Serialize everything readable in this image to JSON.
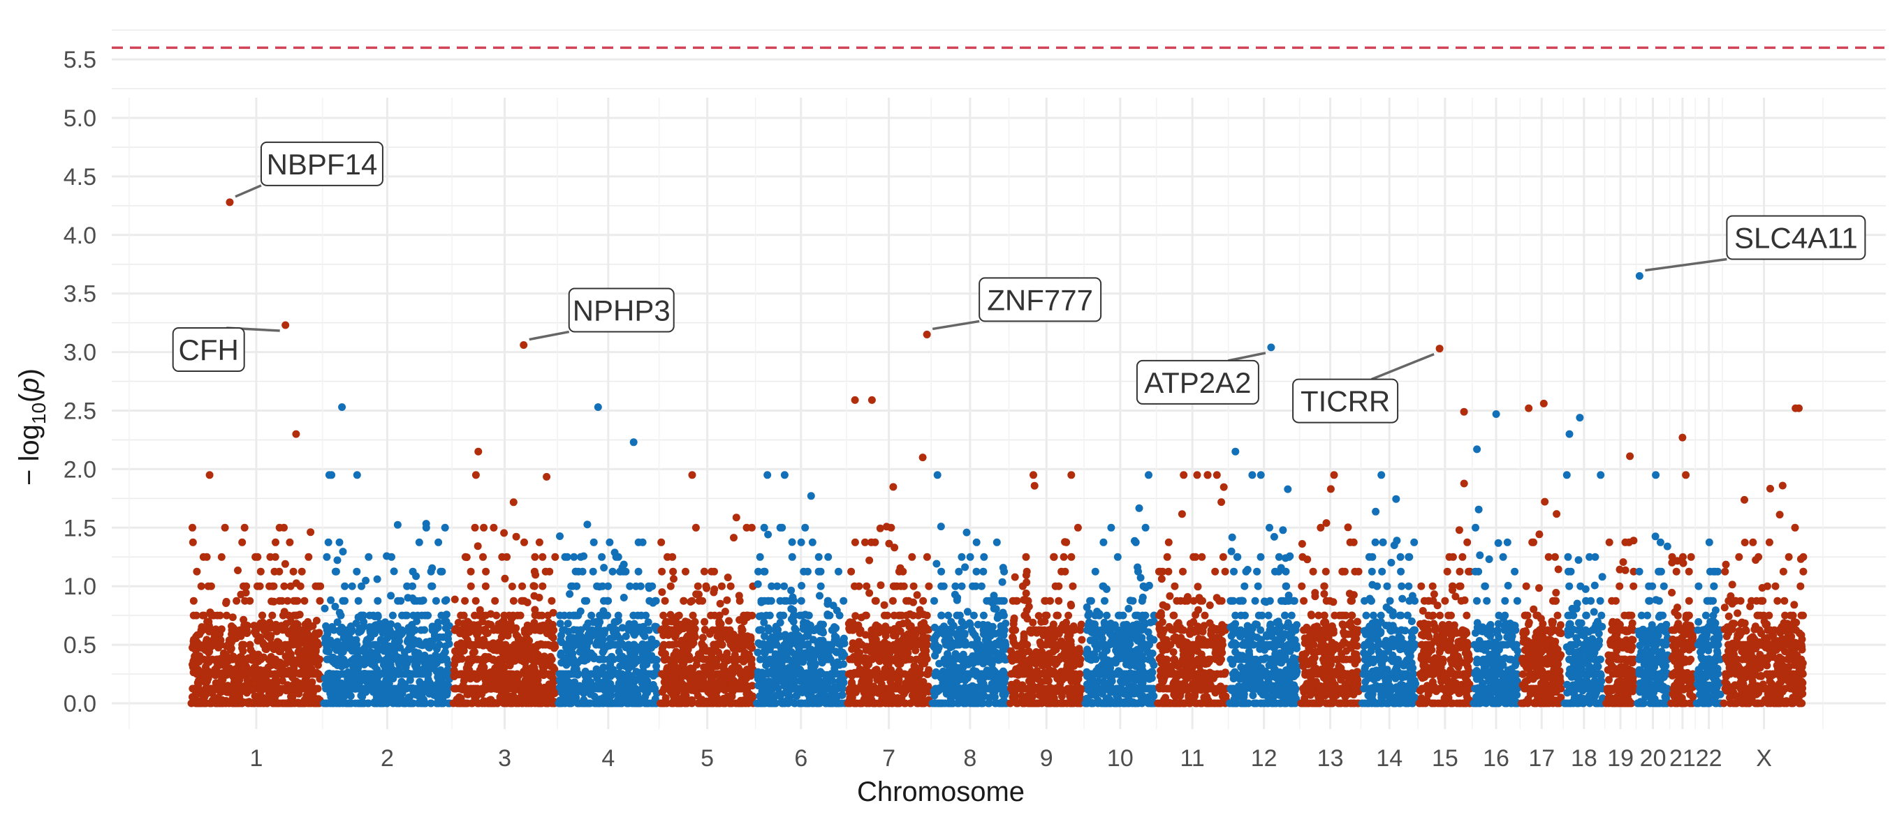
{
  "chart_data": {
    "type": "scatter",
    "title": "",
    "xlabel": "Chromosome",
    "ylabel": "−log10(p)",
    "ylabel_parts": {
      "prefix": "− log",
      "sub": "10",
      "open": "(",
      "var": "p",
      "close": ")"
    },
    "ylim": [
      0,
      5.75
    ],
    "y_ticks": [
      0.0,
      0.5,
      1.0,
      1.5,
      2.0,
      2.5,
      3.0,
      3.5,
      4.0,
      4.5,
      5.0,
      5.5
    ],
    "y_tick_labels": [
      "0.0",
      "0.5",
      "1.0",
      "1.5",
      "2.0",
      "2.5",
      "3.0",
      "3.5",
      "4.0",
      "4.5",
      "5.0",
      "5.5"
    ],
    "significance_threshold": 5.6,
    "grid": true,
    "legend": "none",
    "colors": {
      "odd": "#b22d0b",
      "even": "#1170b8",
      "threshold": "#d14357"
    },
    "chromosomes": [
      {
        "label": "1",
        "size": 249
      },
      {
        "label": "2",
        "size": 243
      },
      {
        "label": "3",
        "size": 198
      },
      {
        "label": "4",
        "size": 191
      },
      {
        "label": "5",
        "size": 181
      },
      {
        "label": "6",
        "size": 171
      },
      {
        "label": "7",
        "size": 159
      },
      {
        "label": "8",
        "size": 146
      },
      {
        "label": "9",
        "size": 141
      },
      {
        "label": "10",
        "size": 136
      },
      {
        "label": "11",
        "size": 135
      },
      {
        "label": "12",
        "size": 134
      },
      {
        "label": "13",
        "size": 115
      },
      {
        "label": "14",
        "size": 107
      },
      {
        "label": "15",
        "size": 102
      },
      {
        "label": "16",
        "size": 90
      },
      {
        "label": "17",
        "size": 81
      },
      {
        "label": "18",
        "size": 78
      },
      {
        "label": "19",
        "size": 59
      },
      {
        "label": "20",
        "size": 63
      },
      {
        "label": "21",
        "size": 48
      },
      {
        "label": "22",
        "size": 51
      },
      {
        "label": "X",
        "size": 156
      }
    ],
    "annotated_hits": [
      {
        "gene": "NBPF14",
        "chromosome": "1",
        "position": 0.3,
        "y": 4.28
      },
      {
        "gene": "CFH",
        "chromosome": "1",
        "position": 0.72,
        "y": 3.23
      },
      {
        "gene": "NPHP3",
        "chromosome": "3",
        "position": 0.68,
        "y": 3.06
      },
      {
        "gene": "ZNF777",
        "chromosome": "7",
        "position": 0.95,
        "y": 3.15
      },
      {
        "gene": "ATP2A2",
        "chromosome": "12",
        "position": 0.6,
        "y": 3.04
      },
      {
        "gene": "TICRR",
        "chromosome": "15",
        "position": 0.4,
        "y": 3.03
      },
      {
        "gene": "SLC4A11",
        "chromosome": "20",
        "position": 0.1,
        "y": 3.65
      }
    ],
    "secondary_peaks": [
      {
        "chromosome": "1",
        "position": 0.8,
        "y": 2.3
      },
      {
        "chromosome": "2",
        "position": 0.15,
        "y": 2.53
      },
      {
        "chromosome": "3",
        "position": 0.25,
        "y": 2.15
      },
      {
        "chromosome": "4",
        "position": 0.4,
        "y": 2.53
      },
      {
        "chromosome": "4",
        "position": 0.75,
        "y": 2.23
      },
      {
        "chromosome": "7",
        "position": 0.1,
        "y": 2.59
      },
      {
        "chromosome": "7",
        "position": 0.3,
        "y": 2.59
      },
      {
        "chromosome": "7",
        "position": 0.9,
        "y": 2.1
      },
      {
        "chromosome": "12",
        "position": 0.1,
        "y": 2.15
      },
      {
        "chromosome": "15",
        "position": 0.85,
        "y": 2.49
      },
      {
        "chromosome": "16",
        "position": 0.1,
        "y": 2.17
      },
      {
        "chromosome": "16",
        "position": 0.5,
        "y": 2.47
      },
      {
        "chromosome": "17",
        "position": 0.2,
        "y": 2.52
      },
      {
        "chromosome": "17",
        "position": 0.55,
        "y": 2.56
      },
      {
        "chromosome": "18",
        "position": 0.4,
        "y": 2.44
      },
      {
        "chromosome": "18",
        "position": 0.15,
        "y": 2.3
      },
      {
        "chromosome": "19",
        "position": 0.8,
        "y": 2.11
      },
      {
        "chromosome": "21",
        "position": 0.5,
        "y": 2.27
      },
      {
        "chromosome": "X",
        "position": 0.88,
        "y": 2.52
      },
      {
        "chromosome": "X",
        "position": 0.92,
        "y": 2.52
      }
    ]
  }
}
